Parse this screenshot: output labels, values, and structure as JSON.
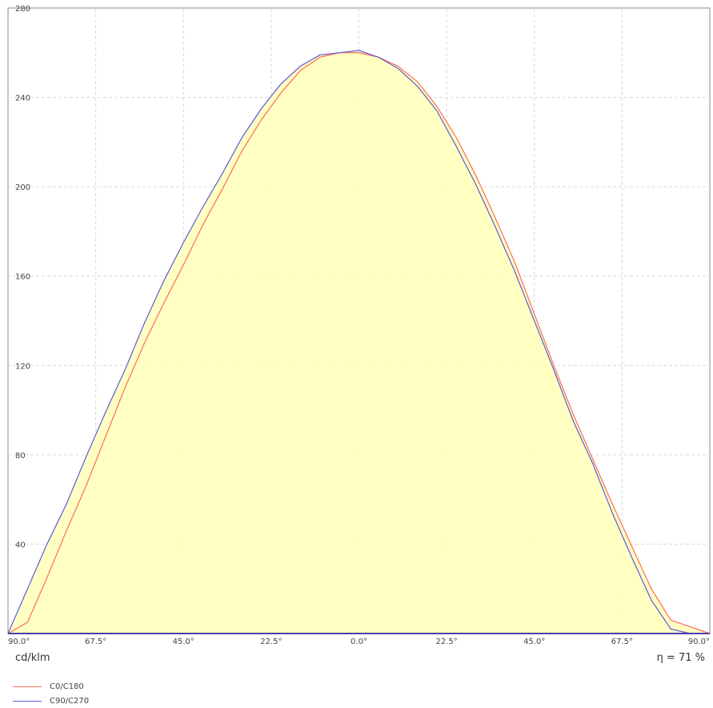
{
  "chart_data": {
    "type": "line",
    "xlabel": "",
    "ylabel": "",
    "unit": "cd/klm",
    "efficiency": "η = 71 %",
    "ylim": [
      0,
      280
    ],
    "yticks": [
      40,
      80,
      120,
      160,
      200,
      240,
      280
    ],
    "xticks": [
      "90.0°",
      "67.5°",
      "45.0°",
      "22.5°",
      "0.0°",
      "22.5°",
      "45.0°",
      "67.5°",
      "90.0°"
    ],
    "grid": true,
    "legend_position": "bottom-left",
    "x": [
      -90,
      -85,
      -80,
      -75,
      -70,
      -65,
      -60,
      -55,
      -50,
      -45,
      -40,
      -35,
      -30,
      -25,
      -20,
      -15,
      -10,
      -5,
      0,
      5,
      10,
      15,
      20,
      25,
      30,
      35,
      40,
      45,
      50,
      55,
      60,
      65,
      70,
      75,
      80,
      85,
      90
    ],
    "series": [
      {
        "name": "C0/C180",
        "color": "#ff6b5b",
        "fill": "#ffffbb",
        "values": [
          0,
          5,
          25,
          46,
          66,
          88,
          110,
          130,
          148,
          165,
          183,
          199,
          216,
          230,
          242,
          252,
          258,
          260,
          260,
          258,
          254,
          247,
          236,
          222,
          205,
          186,
          166,
          143,
          120,
          98,
          78,
          58,
          39,
          20,
          6,
          3,
          0
        ]
      },
      {
        "name": "C90/C270",
        "color": "#5b5bdd",
        "values": [
          0,
          20,
          40,
          58,
          79,
          99,
          118,
          139,
          158,
          175,
          191,
          206,
          222,
          235,
          246,
          254,
          259,
          260,
          261,
          258,
          253,
          245,
          234,
          218,
          201,
          182,
          162,
          140,
          118,
          95,
          76,
          54,
          34,
          15,
          2,
          0,
          0
        ]
      }
    ]
  }
}
